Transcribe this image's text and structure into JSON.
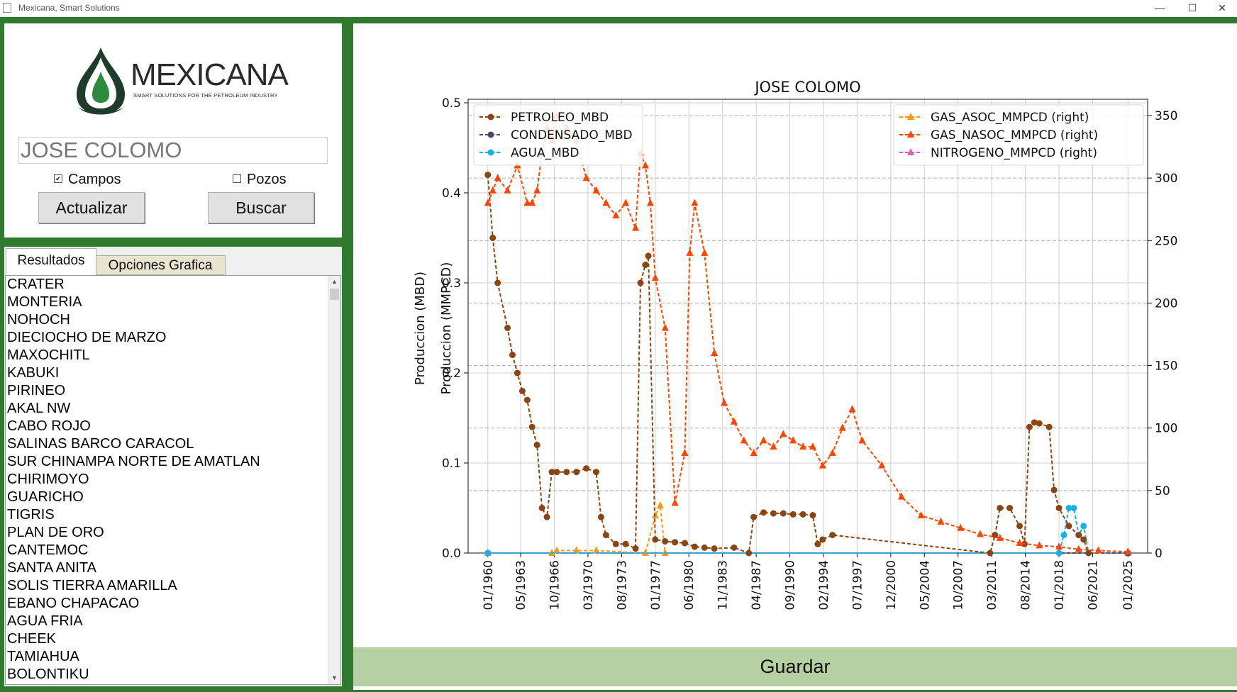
{
  "window": {
    "title": "Mexicana, Smart Solutions",
    "min_icon": "minimize-icon",
    "max_icon": "maximize-icon",
    "close_icon": "close-icon"
  },
  "logo": {
    "name": "MEXICANA",
    "tagline": "SMART SOLUTIONS FOR THE PETROLEUM INDUSTRY"
  },
  "search": {
    "value": "JOSE COLOMO"
  },
  "options": {
    "campos_label": "Campos",
    "campos_checked": true,
    "pozos_label": "Pozos",
    "pozos_checked": false
  },
  "buttons": {
    "actualizar": "Actualizar",
    "buscar": "Buscar",
    "guardar": "Guardar"
  },
  "tabs": {
    "resultados": "Resultados",
    "opciones": "Opciones Grafica"
  },
  "results": [
    "CRATER",
    "MONTERIA",
    "NOHOCH",
    "DIECIOCHO DE MARZO",
    "MAXOCHITL",
    "KABUKI",
    "PIRINEO",
    "AKAL NW",
    "CABO ROJO",
    "SALINAS BARCO CARACOL",
    "SUR CHINAMPA NORTE DE AMATLAN",
    "CHIRIMOYO",
    "GUARICHO",
    "TIGRIS",
    "PLAN DE ORO",
    "CANTEMOC",
    "SANTA ANITA",
    "SOLIS TIERRA AMARILLA",
    "EBANO CHAPACAO",
    "AGUA FRIA",
    "CHEEK",
    "TAMIAHUA",
    "BOLONTIKU"
  ],
  "chart_data": {
    "type": "line",
    "title": "JOSE COLOMO",
    "ylabel_left_1": "Produccion (MBD)",
    "ylabel_left_2": "Produccion (MMPCD)",
    "ylim_left": [
      0,
      0.5
    ],
    "ylim_right": [
      0,
      350
    ],
    "y_ticks_left": [
      "0.0",
      "0.1",
      "0.2",
      "0.3",
      "0.4",
      "0.5"
    ],
    "y_ticks_right": [
      "0",
      "50",
      "100",
      "150",
      "200",
      "250",
      "300",
      "350"
    ],
    "x_ticks": [
      "01/1960",
      "05/1963",
      "10/1966",
      "03/1970",
      "08/1973",
      "01/1977",
      "06/1980",
      "11/1983",
      "04/1987",
      "09/1990",
      "02/1994",
      "07/1997",
      "12/2000",
      "05/2004",
      "10/2007",
      "03/2011",
      "08/2014",
      "01/2018",
      "06/2021",
      "01/2025"
    ],
    "grid": true,
    "legend_left": {
      "placement": "upper-left",
      "entries": [
        "PETROLEO_MBD",
        "CONDENSADO_MBD",
        "AGUA_MBD"
      ]
    },
    "legend_right": {
      "placement": "upper-right",
      "entries": [
        "GAS_ASOC_MMPCD (right)",
        "GAS_NASOC_MMPCD (right)",
        "NITROGENO_MMPCD (right)"
      ]
    },
    "colors": {
      "petroleo": "#8b4513",
      "condensado": "#4a4a6a",
      "agua": "#1ab0e8",
      "gas_asoc": "#ff9912",
      "gas_nasoc": "#ff4500",
      "nitrogeno": "#e060b0"
    },
    "series": [
      {
        "name": "PETROLEO_MBD",
        "axis": "left",
        "x": [
          1960.0,
          1960.5,
          1961,
          1962,
          1962.5,
          1963,
          1963.5,
          1964,
          1964.5,
          1965,
          1965.5,
          1966,
          1966.5,
          1967,
          1968,
          1969,
          1970,
          1971,
          1971.5,
          1972,
          1973,
          1974,
          1975,
          1975.5,
          1976,
          1976.3,
          1977,
          1978,
          1979,
          1980,
          1981,
          1982,
          1983,
          1985,
          1986.5,
          1987,
          1988,
          1989,
          1990,
          1991,
          1992,
          1993,
          1993.5,
          1994,
          1995,
          2011,
          2011.5,
          2012,
          2013,
          2014,
          2014.5,
          2015,
          2015.5,
          2016,
          2017,
          2017.5,
          2018,
          2019,
          2020,
          2020.5,
          2021
        ],
        "y": [
          0.42,
          0.35,
          0.3,
          0.25,
          0.22,
          0.2,
          0.18,
          0.17,
          0.14,
          0.12,
          0.05,
          0.04,
          0.09,
          0.09,
          0.09,
          0.09,
          0.094,
          0.09,
          0.04,
          0.02,
          0.01,
          0.01,
          0.005,
          0.3,
          0.32,
          0.33,
          0.015,
          0.013,
          0.012,
          0.011,
          0.007,
          0.006,
          0.005,
          0.006,
          0.0,
          0.04,
          0.045,
          0.044,
          0.044,
          0.043,
          0.043,
          0.042,
          0.01,
          0.015,
          0.02,
          0.0,
          0.02,
          0.05,
          0.05,
          0.03,
          0.01,
          0.14,
          0.145,
          0.144,
          0.14,
          0.07,
          0.05,
          0.03,
          0.02,
          0.015,
          0.0
        ]
      },
      {
        "name": "CONDENSADO_MBD",
        "axis": "left",
        "x": [
          1960,
          2025
        ],
        "y": [
          0,
          0
        ]
      },
      {
        "name": "AGUA_MBD",
        "axis": "left",
        "x": [
          1960,
          2018,
          2018.5,
          2019,
          2019.5,
          2020,
          2020.5,
          2021
        ],
        "y": [
          0,
          0,
          0.02,
          0.05,
          0.05,
          0.02,
          0.03,
          0.0
        ]
      },
      {
        "name": "GAS_ASOC_MMPCD (right)",
        "axis": "right",
        "x": [
          1960,
          1966.5,
          1967,
          1969,
          1971,
          1976,
          1977,
          1977.5,
          1978
        ],
        "y": [
          0,
          0,
          2,
          2,
          2,
          0,
          30,
          38,
          0
        ]
      },
      {
        "name": "GAS_NASOC_MMPCD (right)",
        "axis": "right",
        "x": [
          1960,
          1960.5,
          1961,
          1962,
          1963,
          1964,
          1964.5,
          1965,
          1965.5,
          1966,
          1966.5,
          1967,
          1968,
          1969,
          1970,
          1971,
          1972,
          1973,
          1974,
          1975,
          1975.5,
          1976,
          1976.5,
          1977,
          1978,
          1979,
          1980,
          1980.5,
          1981,
          1982,
          1983,
          1984,
          1985,
          1986,
          1987,
          1988,
          1989,
          1990,
          1991,
          1992,
          1993,
          1994,
          1995,
          1996,
          1997,
          1998,
          2000,
          2002,
          2004,
          2006,
          2008,
          2010,
          2012,
          2014,
          2016,
          2018,
          2020,
          2022,
          2025
        ],
        "y": [
          280,
          290,
          300,
          290,
          310,
          280,
          280,
          290,
          320,
          340,
          330,
          350,
          340,
          330,
          300,
          290,
          280,
          270,
          280,
          260,
          320,
          310,
          280,
          220,
          180,
          40,
          80,
          240,
          280,
          240,
          160,
          120,
          105,
          90,
          80,
          90,
          85,
          95,
          90,
          85,
          85,
          70,
          80,
          100,
          115,
          90,
          70,
          45,
          30,
          25,
          20,
          15,
          12,
          8,
          6,
          5,
          3,
          2,
          1
        ]
      },
      {
        "name": "NITROGENO_MMPCD (right)",
        "axis": "right",
        "x": [
          1960,
          2025
        ],
        "y": [
          0,
          0
        ]
      }
    ]
  }
}
